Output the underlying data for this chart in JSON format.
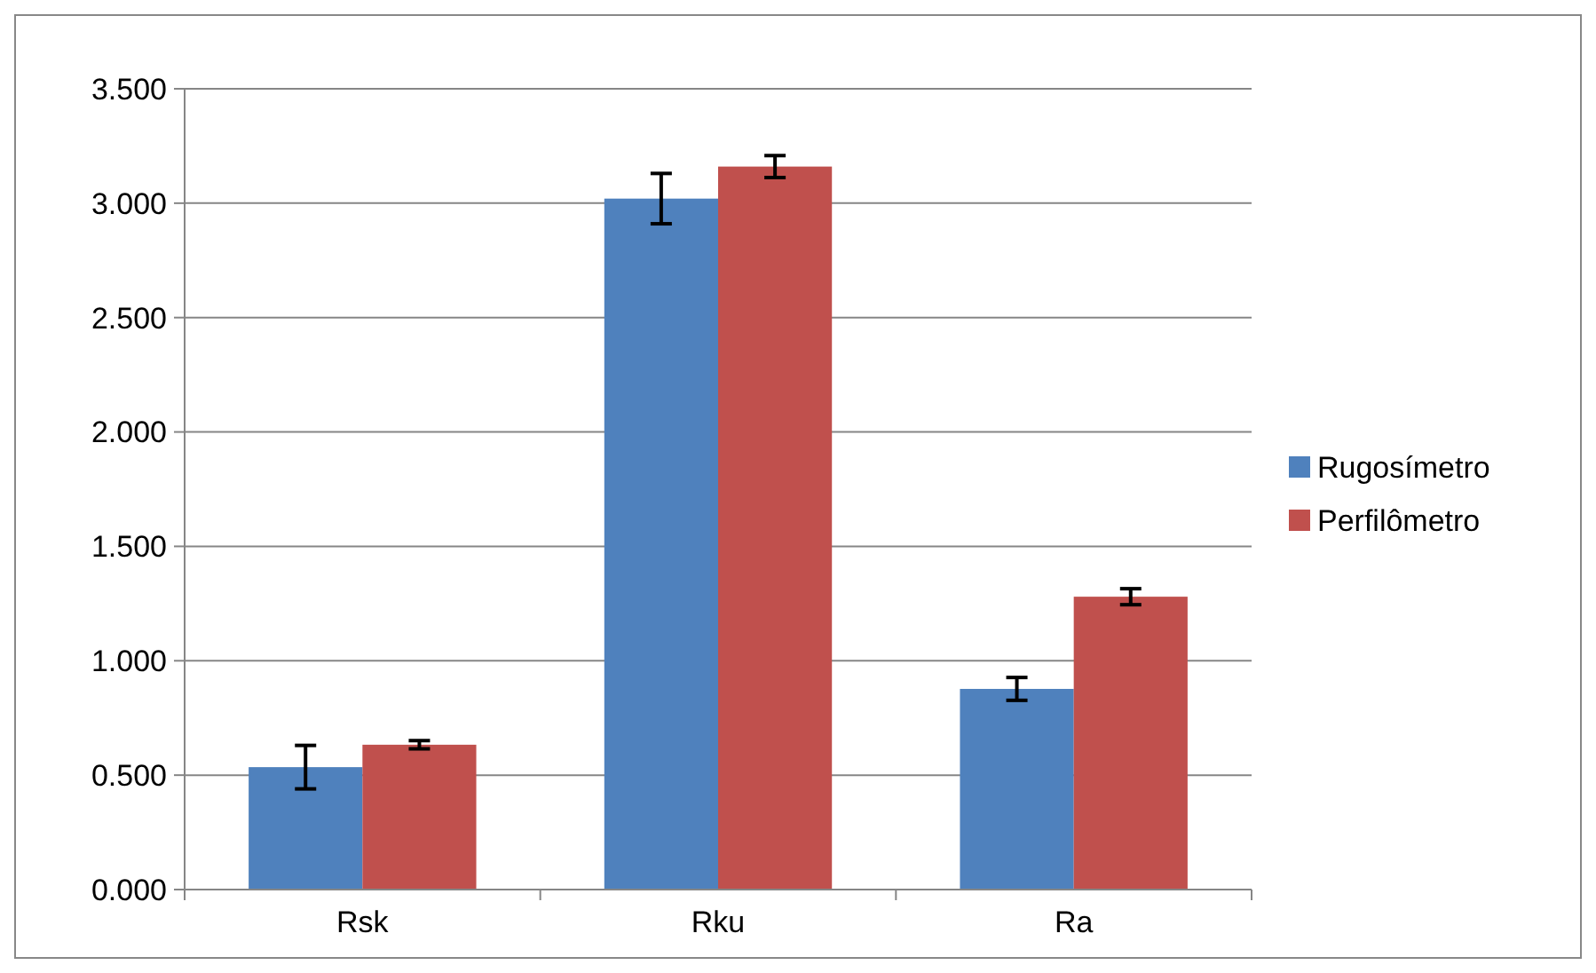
{
  "chart_data": {
    "type": "bar",
    "categories": [
      "Rsk",
      "Rku",
      "Ra"
    ],
    "series": [
      {
        "name": "Rugosímetro",
        "color": "#4f81bd",
        "values": [
          0.535,
          3.02,
          0.877
        ],
        "errors": [
          0.095,
          0.11,
          0.05
        ]
      },
      {
        "name": "Perfilômetro",
        "color": "#c0504d",
        "values": [
          0.633,
          3.16,
          1.28
        ],
        "errors": [
          0.018,
          0.048,
          0.035
        ]
      }
    ],
    "ylim": [
      0,
      3.5
    ],
    "yticks": [
      {
        "value": 0,
        "label": "0.000"
      },
      {
        "value": 0.5,
        "label": "0.500"
      },
      {
        "value": 1,
        "label": "1.000"
      },
      {
        "value": 1.5,
        "label": "1.500"
      },
      {
        "value": 2,
        "label": "2.000"
      },
      {
        "value": 2.5,
        "label": "2.500"
      },
      {
        "value": 3,
        "label": "3.000"
      },
      {
        "value": 3.5,
        "label": "3.500"
      }
    ],
    "grid": "y",
    "legend": "right"
  }
}
